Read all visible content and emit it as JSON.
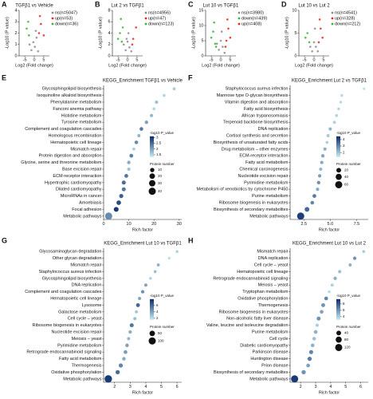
{
  "chart_data": [
    {
      "type": "volcano",
      "panel": "A",
      "title": "TGFβ1 vs Vehicle",
      "x_label": "Log2 (Fold change)",
      "y_label": "-Log10 (P value)",
      "xlim": [
        -8,
        8
      ],
      "xticks": [
        -5,
        0,
        5
      ],
      "ylim": [
        0,
        4
      ],
      "yticks": [
        0,
        1,
        2,
        3,
        4
      ],
      "series": [
        {
          "name": "ns(n=5047)",
          "color": "#8c8c8c",
          "x": [
            -1.5,
            -0.5,
            0.3,
            1.2,
            2.0,
            -2.5,
            0.8
          ],
          "values": [
            0.5,
            1.2,
            0.8,
            1.6,
            0.4,
            1.0,
            2.2
          ]
        },
        {
          "name": "up(n=53)",
          "color": "#e8251f",
          "x": [
            2.5,
            3.5,
            5.0,
            3.0
          ],
          "values": [
            2.0,
            2.8,
            1.8,
            3.5
          ]
        },
        {
          "name": "down(n=36)",
          "color": "#3fae3a",
          "x": [
            -2.8,
            -4.0,
            -3.2
          ],
          "values": [
            1.8,
            2.4,
            3.0
          ]
        }
      ]
    },
    {
      "type": "volcano",
      "panel": "B",
      "title": "Lut 2 vs TGFβ1",
      "x_label": "Log2 (Fold change)",
      "y_label": "-Log10 (P value)",
      "xlim": [
        -8,
        8
      ],
      "xticks": [
        -5,
        0,
        5
      ],
      "ylim": [
        0,
        8
      ],
      "yticks": [
        0,
        2,
        4,
        6,
        8
      ],
      "series": [
        {
          "name": "ns(n=4956)",
          "color": "#8c8c8c",
          "x": [
            -1,
            0,
            1,
            2,
            -2,
            0.5,
            -0.5
          ],
          "values": [
            1,
            2.5,
            1.5,
            0.8,
            2,
            4,
            3
          ]
        },
        {
          "name": "up(n=47)",
          "color": "#e8251f",
          "x": [
            3,
            4.5,
            2.5
          ],
          "values": [
            3,
            5,
            2
          ]
        },
        {
          "name": "down(n=123)",
          "color": "#3fae3a",
          "x": [
            -3,
            -4,
            -2.5,
            -5,
            -3.5
          ],
          "values": [
            2.5,
            4,
            5,
            3,
            6.5
          ]
        }
      ]
    },
    {
      "type": "volcano",
      "panel": "C",
      "title": "Lut 10 vs TGFβ1",
      "x_label": "Log2 (Fold change)",
      "y_label": "-Log10 (P value)",
      "xlim": [
        -8,
        8
      ],
      "xticks": [
        -5,
        0,
        5
      ],
      "ylim": [
        0,
        15
      ],
      "yticks": [
        0,
        5,
        10,
        15
      ],
      "series": [
        {
          "name": "ns(n=3980)",
          "color": "#8c8c8c",
          "x": [
            -1,
            0,
            1,
            2,
            -2,
            0.5
          ],
          "values": [
            2,
            5,
            3,
            1,
            4,
            8
          ]
        },
        {
          "name": "down(n=439)",
          "color": "#3fae3a",
          "x": [
            -3,
            -4,
            -5,
            -2.5,
            -3.5
          ],
          "values": [
            4,
            8,
            6,
            3,
            11
          ]
        },
        {
          "name": "up(n=408)",
          "color": "#e8251f",
          "x": [
            3,
            4,
            5,
            2.5,
            3.5
          ],
          "values": [
            5,
            9,
            6,
            3,
            12
          ]
        }
      ]
    },
    {
      "type": "volcano",
      "panel": "D",
      "title": "Lut 10 vs Lut 2",
      "x_label": "Log2 (Fold change)",
      "y_label": "-Log10 (P value)",
      "xlim": [
        -8,
        8
      ],
      "xticks": [
        -5,
        0,
        5
      ],
      "ylim": [
        0,
        10
      ],
      "yticks": [
        0,
        5,
        10
      ],
      "series": [
        {
          "name": "ns(n=4541)",
          "color": "#8c8c8c",
          "x": [
            -1,
            0,
            1,
            -2,
            2,
            0.5
          ],
          "values": [
            1,
            3,
            2,
            2,
            1,
            6
          ]
        },
        {
          "name": "up(n=328)",
          "color": "#e8251f",
          "x": [
            2.5,
            3.5,
            4.5,
            3
          ],
          "values": [
            3,
            6,
            4,
            8
          ]
        },
        {
          "name": "down(n=212)",
          "color": "#3fae3a",
          "x": [
            -2.5,
            -3.5,
            -4.5
          ],
          "values": [
            3,
            5,
            4
          ]
        }
      ]
    },
    {
      "type": "bubble",
      "panel": "E",
      "title": "KEGG_Enrichment  TGFβ1 vs Vehicle",
      "x_label": "Rich factor",
      "xlim": [
        0,
        31
      ],
      "xticks": [
        0,
        10,
        20,
        30
      ],
      "categories": [
        "Glycosphingolipid biosynthesis",
        "Isoquinoline alkaloid biosynthesis",
        "Phenylalanine metabolism",
        "Fanconi anemia pathway",
        "Histidine metabolism",
        "Tyrosine metabolism",
        "Complement and coagulation cascades",
        "Homologous recombination",
        "Hematopoietic cell lineage",
        "Mismatch repair",
        "Protein digestion and absorption",
        "Glycine, serine and threonine metabolism",
        "Base excision repair",
        "ECM-receptor interaction",
        "Hypertrophic cardiomyopathy",
        "Dilated cardiomyopathy",
        "MicroRNAs in cancer",
        "Amoebiasis",
        "Focal adhesion",
        "Metabolic pathways"
      ],
      "values": [
        28,
        24,
        21,
        20,
        19,
        17,
        15,
        14,
        13,
        12,
        11,
        10,
        10,
        9,
        8,
        8,
        7,
        6,
        5,
        2
      ],
      "sizes": [
        3,
        3,
        4,
        3,
        4,
        5,
        6,
        4,
        6,
        3,
        7,
        5,
        4,
        7,
        8,
        8,
        9,
        12,
        14,
        40
      ],
      "color_values": [
        1.6,
        1.5,
        1.7,
        1.5,
        1.8,
        2.0,
        2.4,
        1.8,
        2.2,
        1.6,
        2.3,
        1.9,
        1.7,
        2.4,
        2.5,
        2.4,
        2.6,
        2.8,
        3.0,
        2.2
      ],
      "colormap": [
        "#c6ecf1",
        "#0b2c6b"
      ],
      "color_title": "-log10 P_value",
      "clim": [
        1.3,
        3.1
      ],
      "cticks": [
        1.5,
        2,
        2.5,
        3
      ],
      "size_title": "Protein number",
      "size_ticks": [
        10,
        20,
        30,
        40
      ]
    },
    {
      "type": "bubble",
      "panel": "F",
      "title": "KEGG_Enrichment  Lut 2 vs TGFβ1",
      "x_label": "Rich factor",
      "xlim": [
        1.2,
        8.6
      ],
      "xticks": [
        2.5,
        {
          "value": 5,
          "label": "5.0"
        },
        7.5
      ],
      "categories": [
        "Staphylococcus aureus infection",
        "Mannose type O-glycan biosynthesis",
        "Vitamin digestion and absorption",
        "Fatty acid biosynthesis",
        "African trypanosomiasis",
        "Terpenoid backbone biosynthesis",
        "DNA replication",
        "Cortisol synthesis and secretion",
        "Biosynthesis of unsaturated fatty acids",
        "Drug metabolism – other enzymes",
        "ECM-receptor interaction",
        "Fatty acid metabolism",
        "Chemical carcinogenesis",
        "Nucleotide excision repair",
        "Pyrimidine metabolism",
        "Metabolism of xenobiotics by cytochrome P450",
        "Purine metabolism",
        "Ribosome biogenesis in eukaryotes",
        "Biosynthesis of secondary metabolites",
        "Metabolic pathways"
      ],
      "values": [
        8.2,
        6.1,
        6.0,
        5.8,
        5.6,
        5.4,
        5.0,
        4.8,
        4.7,
        4.5,
        4.3,
        4.2,
        4.1,
        4.0,
        3.9,
        3.8,
        3.5,
        3.3,
        2.8,
        2.2
      ],
      "sizes": [
        2,
        3,
        3,
        3,
        4,
        4,
        6,
        5,
        4,
        6,
        7,
        6,
        6,
        7,
        8,
        6,
        10,
        9,
        20,
        60
      ],
      "color_values": [
        1.5,
        1.6,
        1.6,
        1.7,
        1.7,
        1.8,
        2.2,
        1.9,
        1.8,
        2.3,
        2.5,
        2.4,
        2.2,
        2.6,
        2.8,
        2.4,
        3.2,
        3.0,
        3.5,
        4.2
      ],
      "colormap": [
        "#c6ecf1",
        "#0b2c6b"
      ],
      "color_title": "-log10 P_value",
      "clim": [
        1.3,
        4.5
      ],
      "cticks": [
        2,
        3,
        4
      ],
      "size_title": "Protein number",
      "size_ticks": [
        20,
        40,
        60
      ]
    },
    {
      "type": "bubble",
      "panel": "G",
      "title": "KEGG_Enrichment  Lut 10 vs TGFβ1",
      "x_label": "Rich factor",
      "xlim": [
        1.3,
        6.3
      ],
      "xticks": [
        2,
        3,
        4,
        5,
        6
      ],
      "categories": [
        "Glycosaminoglycan degradation",
        "Other glycan degradation",
        "Mismatch repair",
        "Staphylococcus aureus infection",
        "Glycosphingolipid biosynthesis",
        "DNA replication",
        "Complement and coagulation cascades",
        "Hematopoietic cell lineage",
        "Lysosome",
        "Galactose metabolism",
        "Cell cycle – yeast",
        "Ribosome biogenesis in eukaryotes",
        "Nucleotide excision repair",
        "Meiosis – yeast",
        "Pyrimidine metabolism",
        "Retrograde endocannabinoid signaling",
        "Fatty acid metabolism",
        "Thermogenesis",
        "Oxidative phosphorylation",
        "Metabolic pathways"
      ],
      "values": [
        6.0,
        5.5,
        4.8,
        4.6,
        4.3,
        4.0,
        3.8,
        3.6,
        3.5,
        3.4,
        3.3,
        3.1,
        3.0,
        2.9,
        2.8,
        2.7,
        2.6,
        2.4,
        2.2,
        1.6
      ],
      "sizes": [
        5,
        4,
        8,
        7,
        5,
        9,
        12,
        10,
        18,
        8,
        9,
        20,
        12,
        10,
        14,
        16,
        13,
        22,
        25,
        110
      ],
      "color_values": [
        2.5,
        2.0,
        3.5,
        3.0,
        2.4,
        4.0,
        4.5,
        3.8,
        6.0,
        2.8,
        3.0,
        5.5,
        3.6,
        3.2,
        4.0,
        4.2,
        3.8,
        5.0,
        5.8,
        7.5
      ],
      "colormap": [
        "#c6ecf1",
        "#0b2c6b"
      ],
      "color_title": "-log10 P_value",
      "clim": [
        1.5,
        8
      ],
      "cticks": [
        2,
        4,
        6
      ],
      "size_title": "Protein number",
      "size_ticks": [
        50,
        100
      ]
    },
    {
      "type": "bubble",
      "panel": "H",
      "title": "KEGG_Enrichment  Lut 10 vs Lut 2",
      "x_label": "Rich factor",
      "xlim": [
        1.3,
        6.5
      ],
      "xticks": [
        2,
        3,
        4,
        5,
        6
      ],
      "categories": [
        "Mismatch repair",
        "DNA replication",
        "Cell cycle – yeast",
        "Hematopoietic cell lineage",
        "Retrograde endocannabinoid signaling",
        "Meiosis – yeast",
        "Tryptophan metabolism",
        "Oxidative phosphorylation",
        "Thermogenesis",
        "Ribosome biogenesis in eukaryotes",
        "Non-alcoholic fatty liver disease",
        "Valine, leucine and isoleucine degradation",
        "Purine metabolism",
        "Cell cycle",
        "Diabetic cardiomyopathy",
        "Parkinson disease",
        "Huntington disease",
        "Prion disease",
        "Biosynthesis of secondary metabolites",
        "Metabolic pathways"
      ],
      "values": [
        6.2,
        5.6,
        5.3,
        4.6,
        4.3,
        4.1,
        3.9,
        3.7,
        3.5,
        3.4,
        3.2,
        3.1,
        3.0,
        2.9,
        2.8,
        2.7,
        2.6,
        2.5,
        2.2,
        1.6
      ],
      "sizes": [
        8,
        14,
        10,
        12,
        15,
        9,
        8,
        20,
        22,
        18,
        24,
        12,
        20,
        16,
        18,
        26,
        28,
        20,
        30,
        120
      ],
      "color_values": [
        4,
        6,
        5,
        4.5,
        5,
        4,
        3.5,
        6.5,
        6,
        5.5,
        6,
        4,
        5,
        4.5,
        5,
        6.5,
        6.8,
        5.5,
        6,
        9
      ],
      "colormap": [
        "#c6ecf1",
        "#0b2c6b"
      ],
      "color_title": "-log10 P_value",
      "clim": [
        3,
        9.5
      ],
      "cticks": [
        4,
        6,
        8
      ],
      "size_title": "Protein number",
      "size_ticks": [
        40,
        80,
        120
      ]
    }
  ]
}
